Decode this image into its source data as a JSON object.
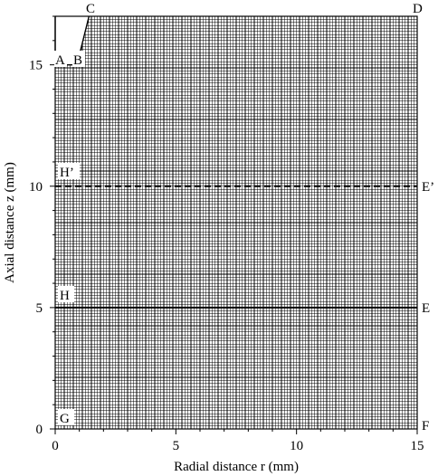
{
  "chart_data": {
    "type": "mesh-diagram",
    "xlabel": "Radial distance r (mm)",
    "ylabel": "Axial distance z (mm)",
    "xlim": [
      0,
      15
    ],
    "ylim": [
      0,
      17
    ],
    "x_ticks": [
      "0",
      "5",
      "10",
      "15"
    ],
    "y_ticks": [
      "0",
      "5",
      "10",
      "15"
    ],
    "mesh_spacing_mm": 0.125,
    "lines": [
      {
        "name": "H-E",
        "z": 5,
        "style": "solid"
      },
      {
        "name": "H'-E'",
        "z": 10,
        "style": "dashed"
      }
    ],
    "nozzle": {
      "inner_radius_mm": 0.9,
      "outer_radius_mm": 1.4,
      "tip_z_mm": 15,
      "top_z_mm": 17
    },
    "points": {
      "A": "A",
      "B": "B",
      "C": "C",
      "D": "D",
      "E": "E",
      "F": "F",
      "G": "G",
      "H": "H",
      "E_prime": "E’",
      "H_prime": "H’"
    }
  }
}
